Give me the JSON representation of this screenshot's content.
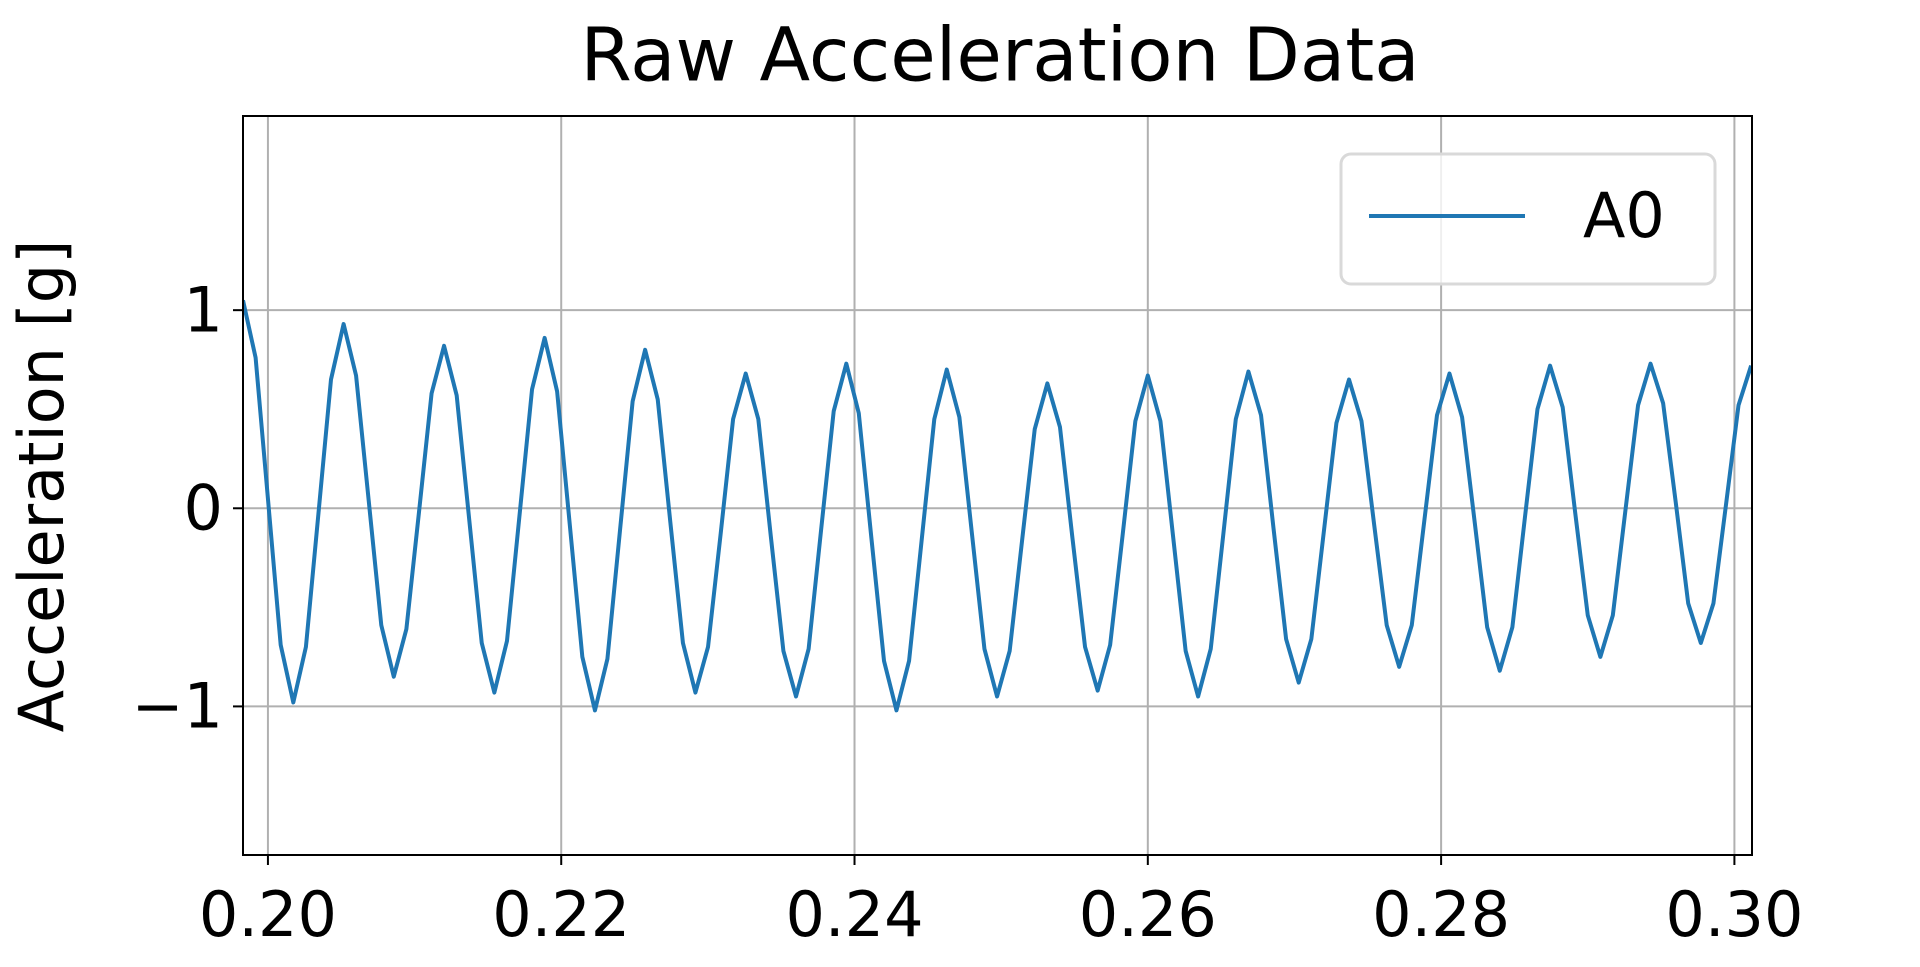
{
  "chart_data": {
    "type": "line",
    "title": "Raw Acceleration Data",
    "y_label": "Acceleration [g]",
    "xlim": [
      0.1983,
      0.3012
    ],
    "ylim": [
      -1.75,
      1.98
    ],
    "xticks": [
      {
        "value": 0.2,
        "label": "0.20"
      },
      {
        "value": 0.22,
        "label": "0.22"
      },
      {
        "value": 0.24,
        "label": "0.24"
      },
      {
        "value": 0.26,
        "label": "0.26"
      },
      {
        "value": 0.28,
        "label": "0.28"
      },
      {
        "value": 0.3,
        "label": "0.30"
      }
    ],
    "yticks": [
      {
        "value": -1,
        "label": "−1"
      },
      0,
      1
    ],
    "grid": true,
    "legend": "upper right",
    "x": [
      0.1983,
      0.19916,
      0.20001,
      0.20087,
      0.20173,
      0.20259,
      0.20344,
      0.2043,
      0.20516,
      0.20601,
      0.20687,
      0.20773,
      0.20858,
      0.20944,
      0.2103,
      0.21116,
      0.21201,
      0.21287,
      0.21373,
      0.21458,
      0.21544,
      0.2163,
      0.21715,
      0.21801,
      0.21887,
      0.21972,
      0.22058,
      0.22144,
      0.2223,
      0.22315,
      0.22401,
      0.22487,
      0.22572,
      0.22658,
      0.22744,
      0.2283,
      0.22915,
      0.23001,
      0.23087,
      0.23172,
      0.23258,
      0.23344,
      0.23429,
      0.23515,
      0.23601,
      0.23687,
      0.23772,
      0.23858,
      0.23944,
      0.24029,
      0.24115,
      0.24201,
      0.24286,
      0.24372,
      0.24458,
      0.24544,
      0.24629,
      0.24715,
      0.24801,
      0.24886,
      0.24972,
      0.25058,
      0.25143,
      0.25229,
      0.25315,
      0.25401,
      0.25486,
      0.25572,
      0.25658,
      0.25743,
      0.25829,
      0.25915,
      0.26,
      0.26086,
      0.26172,
      0.26258,
      0.26343,
      0.26429,
      0.26515,
      0.266,
      0.26686,
      0.26772,
      0.26857,
      0.26943,
      0.27029,
      0.27115,
      0.272,
      0.27286,
      0.27372,
      0.27457,
      0.27543,
      0.27629,
      0.27714,
      0.278,
      0.27886,
      0.27972,
      0.28057,
      0.28143,
      0.28229,
      0.28314,
      0.284,
      0.28486,
      0.28571,
      0.28657,
      0.28743,
      0.28829,
      0.28914,
      0.29,
      0.29086,
      0.29171,
      0.29257,
      0.29343,
      0.29428,
      0.29514,
      0.296,
      0.29685,
      0.29771,
      0.29857,
      0.29943,
      0.30028,
      0.30114
    ],
    "series": [
      {
        "name": "A0",
        "color": "#1f77b4",
        "values": [
          1.05,
          0.76,
          0.04,
          -0.69,
          -0.98,
          -0.7,
          -0.03,
          0.65,
          0.93,
          0.67,
          0.04,
          -0.59,
          -0.85,
          -0.61,
          -0.02,
          0.58,
          0.82,
          0.57,
          -0.06,
          -0.68,
          -0.93,
          -0.67,
          -0.04,
          0.6,
          0.86,
          0.59,
          -0.08,
          -0.75,
          -1.02,
          -0.76,
          -0.11,
          0.54,
          0.8,
          0.55,
          -0.07,
          -0.68,
          -0.93,
          -0.7,
          -0.13,
          0.45,
          0.68,
          0.45,
          -0.14,
          -0.72,
          -0.95,
          -0.71,
          -0.11,
          0.49,
          0.73,
          0.48,
          -0.15,
          -0.77,
          -1.02,
          -0.77,
          -0.16,
          0.45,
          0.7,
          0.46,
          -0.13,
          -0.71,
          -0.95,
          -0.72,
          -0.16,
          0.4,
          0.63,
          0.41,
          -0.15,
          -0.7,
          -0.92,
          -0.69,
          -0.13,
          0.44,
          0.67,
          0.44,
          -0.14,
          -0.72,
          -0.95,
          -0.71,
          -0.13,
          0.45,
          0.69,
          0.47,
          -0.1,
          -0.66,
          -0.88,
          -0.66,
          -0.12,
          0.43,
          0.65,
          0.44,
          -0.08,
          -0.59,
          -0.8,
          -0.59,
          -0.06,
          0.47,
          0.68,
          0.46,
          -0.07,
          -0.6,
          -0.82,
          -0.6,
          -0.05,
          0.5,
          0.72,
          0.51,
          -0.02,
          -0.54,
          -0.75,
          -0.54,
          -0.01,
          0.52,
          0.73,
          0.53,
          0.03,
          -0.48,
          -0.68,
          -0.48,
          0.02,
          0.52,
          0.72
        ]
      }
    ]
  }
}
